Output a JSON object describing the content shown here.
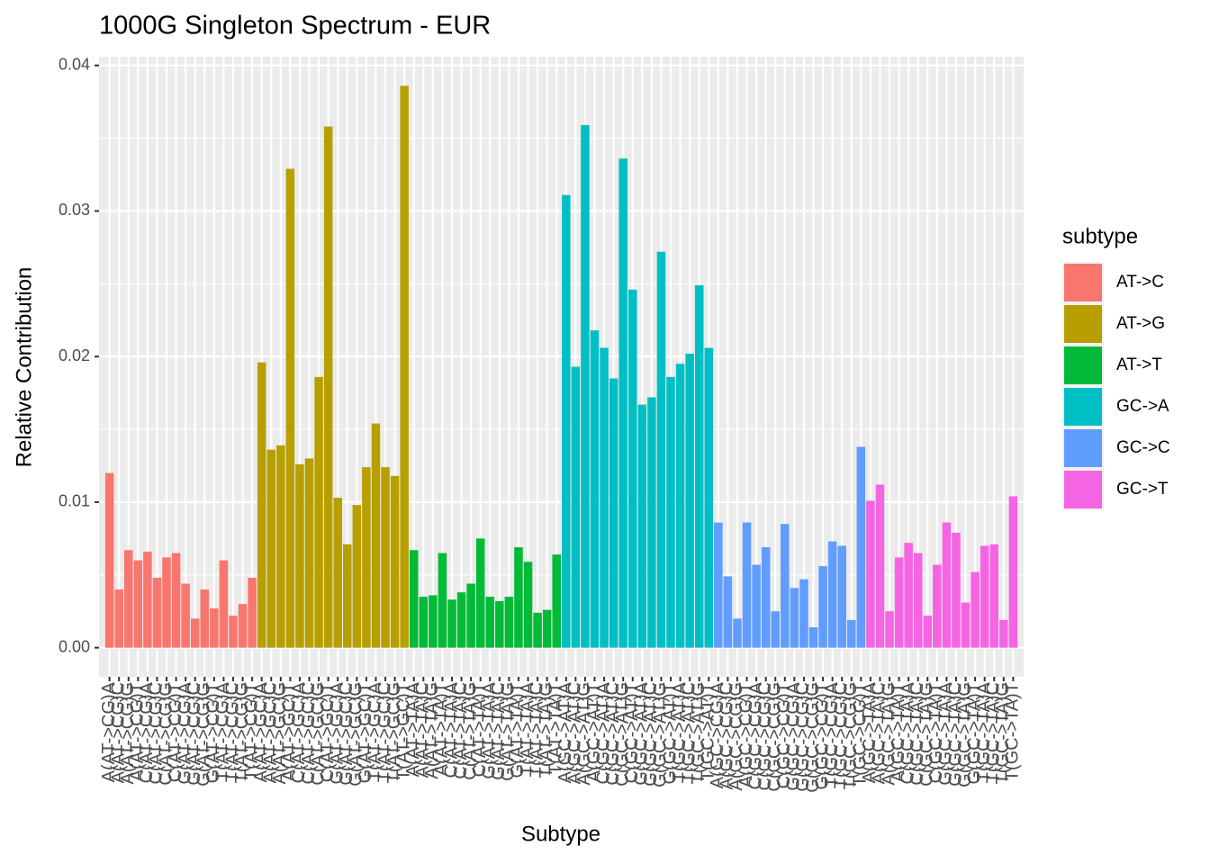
{
  "chart_data": {
    "type": "bar",
    "title": "1000G Singleton Spectrum - EUR",
    "x_label": "Subtype",
    "y_label": "Relative Contribution",
    "legend_title": "subtype",
    "ylim": [
      -0.002,
      0.0406
    ],
    "yticks": [
      {
        "value": 0,
        "label": "0.00"
      },
      {
        "value": 0.01,
        "label": "0.01"
      },
      {
        "value": 0.02,
        "label": "0.02"
      },
      {
        "value": 0.03,
        "label": "0.03"
      },
      {
        "value": 0.04,
        "label": "0.04"
      }
    ],
    "grid": true,
    "legend_position": "right",
    "series": [
      {
        "name": "AT->C",
        "color": "#f8766d",
        "categories": [
          "A(AT->CG)A",
          "A(AT->CG)C",
          "A(AT->CG)G",
          "A(AT->CG)T",
          "C(AT->CG)A",
          "C(AT->CG)C",
          "C(AT->CG)G",
          "C(AT->CG)T",
          "G(AT->CG)A",
          "G(AT->CG)C",
          "G(AT->CG)G",
          "G(AT->CG)T",
          "T(AT->CG)A",
          "T(AT->CG)C",
          "T(AT->CG)G",
          "T(AT->CG)T"
        ],
        "values": [
          0.012,
          0.004,
          0.0067,
          0.006,
          0.0066,
          0.0048,
          0.0062,
          0.0065,
          0.0044,
          0.002,
          0.004,
          0.0027,
          0.006,
          0.0022,
          0.003,
          0.0048
        ]
      },
      {
        "name": "AT->G",
        "color": "#b79f00",
        "categories": [
          "A(AT->GC)A",
          "A(AT->GC)C",
          "A(AT->GC)G",
          "A(AT->GC)T",
          "C(AT->GC)A",
          "C(AT->GC)C",
          "C(AT->GC)G",
          "C(AT->GC)T",
          "G(AT->GC)A",
          "G(AT->GC)C",
          "G(AT->GC)G",
          "G(AT->GC)T",
          "T(AT->GC)A",
          "T(AT->GC)C",
          "T(AT->GC)G",
          "T(AT->GC)T"
        ],
        "values": [
          0.0196,
          0.0136,
          0.0139,
          0.0329,
          0.0126,
          0.013,
          0.0186,
          0.0358,
          0.0103,
          0.0071,
          0.0098,
          0.0124,
          0.0154,
          0.0124,
          0.0118,
          0.0386
        ]
      },
      {
        "name": "AT->T",
        "color": "#00ba38",
        "categories": [
          "A(AT->TA)A",
          "A(AT->TA)C",
          "A(AT->TA)G",
          "A(AT->TA)T",
          "C(AT->TA)A",
          "C(AT->TA)C",
          "C(AT->TA)G",
          "C(AT->TA)T",
          "G(AT->TA)A",
          "G(AT->TA)C",
          "G(AT->TA)G",
          "G(AT->TA)T",
          "T(AT->TA)A",
          "T(AT->TA)C",
          "T(AT->TA)G",
          "T(AT->TA)T"
        ],
        "values": [
          0.0067,
          0.0035,
          0.0036,
          0.0065,
          0.0033,
          0.0038,
          0.0044,
          0.0075,
          0.0035,
          0.0032,
          0.0035,
          0.0069,
          0.0059,
          0.0024,
          0.0026,
          0.0064
        ]
      },
      {
        "name": "GC->A",
        "color": "#00bfc4",
        "categories": [
          "A(GC->AT)A",
          "A(GC->AT)C",
          "A(GC->AT)G",
          "A(GC->AT)T",
          "C(GC->AT)A",
          "C(GC->AT)C",
          "C(GC->AT)G",
          "C(GC->AT)T",
          "G(GC->AT)A",
          "G(GC->AT)C",
          "G(GC->AT)G",
          "G(GC->AT)T",
          "T(GC->AT)A",
          "T(GC->AT)C",
          "T(GC->AT)G",
          "T(GC->AT)T"
        ],
        "values": [
          0.0311,
          0.0193,
          0.0359,
          0.0218,
          0.0206,
          0.0185,
          0.0336,
          0.0246,
          0.0167,
          0.0172,
          0.0272,
          0.0186,
          0.0195,
          0.0202,
          0.0249,
          0.0206
        ]
      },
      {
        "name": "GC->C",
        "color": "#619cff",
        "categories": [
          "A(GC->CG)A",
          "A(GC->CG)C",
          "A(GC->CG)G",
          "A(GC->CG)T",
          "C(GC->CG)A",
          "C(GC->CG)C",
          "C(GC->CG)G",
          "C(GC->CG)T",
          "G(GC->CG)A",
          "G(GC->CG)C",
          "G(GC->CG)G",
          "G(GC->CG)T",
          "T(GC->CG)A",
          "T(GC->CG)C",
          "T(GC->CG)G",
          "T(GC->CG)T"
        ],
        "values": [
          0.0086,
          0.0049,
          0.002,
          0.0086,
          0.0057,
          0.0069,
          0.0025,
          0.0085,
          0.0041,
          0.0047,
          0.0014,
          0.0056,
          0.0073,
          0.007,
          0.0019,
          0.0138
        ]
      },
      {
        "name": "GC->T",
        "color": "#f564e3",
        "categories": [
          "A(GC->TA)A",
          "A(GC->TA)C",
          "A(GC->TA)G",
          "A(GC->TA)T",
          "C(GC->TA)A",
          "C(GC->TA)C",
          "C(GC->TA)G",
          "C(GC->TA)T",
          "G(GC->TA)A",
          "G(GC->TA)C",
          "G(GC->TA)G",
          "G(GC->TA)T",
          "T(GC->TA)A",
          "T(GC->TA)C",
          "T(GC->TA)G",
          "T(GC->TA)T"
        ],
        "values": [
          0.0101,
          0.0112,
          0.0025,
          0.0062,
          0.0072,
          0.0065,
          0.0022,
          0.0057,
          0.0086,
          0.0079,
          0.0031,
          0.0052,
          0.007,
          0.0071,
          0.0019,
          0.0104
        ]
      }
    ]
  }
}
